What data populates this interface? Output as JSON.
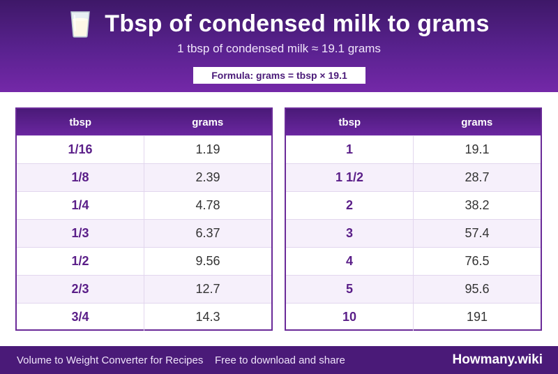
{
  "header": {
    "icon": "glass-of-milk-icon",
    "title": "Tbsp of condensed milk to grams",
    "subtitle": "1 tbsp of condensed milk ≈ 19.1 grams",
    "formula": "Formula: grams = tbsp × 19.1"
  },
  "tables": [
    {
      "columns": [
        "tbsp",
        "grams"
      ],
      "rows": [
        [
          "1/16",
          "1.19"
        ],
        [
          "1/8",
          "2.39"
        ],
        [
          "1/4",
          "4.78"
        ],
        [
          "1/3",
          "6.37"
        ],
        [
          "1/2",
          "9.56"
        ],
        [
          "2/3",
          "12.7"
        ],
        [
          "3/4",
          "14.3"
        ]
      ]
    },
    {
      "columns": [
        "tbsp",
        "grams"
      ],
      "rows": [
        [
          "1",
          "19.1"
        ],
        [
          "1 1/2",
          "28.7"
        ],
        [
          "2",
          "38.2"
        ],
        [
          "3",
          "57.4"
        ],
        [
          "4",
          "76.5"
        ],
        [
          "5",
          "95.6"
        ],
        [
          "10",
          "191"
        ]
      ]
    }
  ],
  "footer": {
    "left_text": "Volume to Weight Converter for Recipes",
    "middle_text": "Free to download and share",
    "brand": "Howmany.wiki"
  },
  "colors": {
    "primary": "#5a2290",
    "dark": "#4a1a78",
    "row_alt": "#f6f0fb"
  }
}
